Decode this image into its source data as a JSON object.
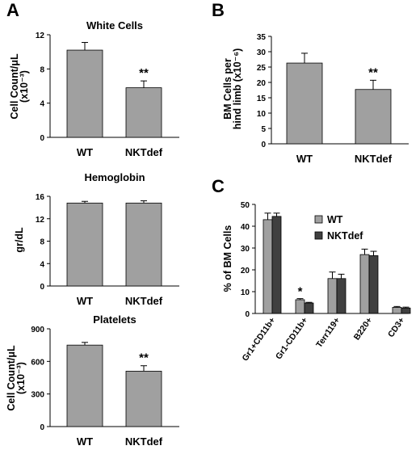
{
  "colors": {
    "bar_gray": "#a0a0a0",
    "bar_dark": "#404040",
    "axis": "#000000"
  },
  "chart_data": [
    {
      "panel_letter": "A",
      "type": "bar",
      "title": "White Cells",
      "ylabel": [
        "Cell Count/μL",
        "(x10⁻³)"
      ],
      "categories": [
        "WT",
        "NKTdef"
      ],
      "values": [
        10.2,
        5.8
      ],
      "errors": [
        0.9,
        0.8
      ],
      "significance": [
        "",
        "**"
      ],
      "ylim": [
        0,
        12
      ],
      "yticks": [
        0,
        4,
        8,
        12
      ]
    },
    {
      "panel_letter": "",
      "type": "bar",
      "title": "Hemoglobin",
      "ylabel": [
        "gr/dL"
      ],
      "categories": [
        "WT",
        "NKTdef"
      ],
      "values": [
        14.8,
        14.8
      ],
      "errors": [
        0.3,
        0.4
      ],
      "significance": [
        "",
        ""
      ],
      "ylim": [
        0,
        16
      ],
      "yticks": [
        0,
        4,
        8,
        12,
        16
      ]
    },
    {
      "panel_letter": "",
      "type": "bar",
      "title": "Platelets",
      "ylabel": [
        "Cell Count/μL",
        "(x10⁻³)"
      ],
      "categories": [
        "WT",
        "NKTdef"
      ],
      "values": [
        750,
        510
      ],
      "errors": [
        25,
        50
      ],
      "significance": [
        "",
        "**"
      ],
      "ylim": [
        0,
        900
      ],
      "yticks": [
        0,
        300,
        600,
        900
      ]
    },
    {
      "panel_letter": "B",
      "type": "bar",
      "title": "",
      "ylabel": [
        "BM Cells per",
        "hind limb (x10⁻⁶)"
      ],
      "categories": [
        "WT",
        "NKTdef"
      ],
      "values": [
        26.3,
        17.7
      ],
      "errors": [
        3.2,
        3.0
      ],
      "significance": [
        "",
        "**"
      ],
      "ylim": [
        0,
        35
      ],
      "yticks": [
        0,
        5,
        10,
        15,
        20,
        25,
        30,
        35
      ]
    },
    {
      "panel_letter": "C",
      "type": "bar",
      "title": "",
      "ylabel": [
        "% of BM Cells"
      ],
      "categories": [
        "Gr1+CD11b+",
        "Gr1-CD11b+",
        "Terr119+",
        "B220+",
        "CD3+"
      ],
      "series": [
        {
          "name": "WT",
          "values": [
            43.0,
            6.3,
            16.0,
            27.0,
            2.8
          ],
          "errors": [
            3.0,
            0.5,
            3.0,
            2.5,
            0.4
          ]
        },
        {
          "name": "NKTdef",
          "values": [
            44.5,
            4.8,
            16.0,
            26.5,
            2.5
          ],
          "errors": [
            1.5,
            0.3,
            2.0,
            2.0,
            0.4
          ]
        }
      ],
      "significance": [
        "",
        "*",
        "",
        "",
        ""
      ],
      "ylim": [
        0,
        50
      ],
      "yticks": [
        0,
        10,
        20,
        30,
        40,
        50
      ]
    }
  ]
}
